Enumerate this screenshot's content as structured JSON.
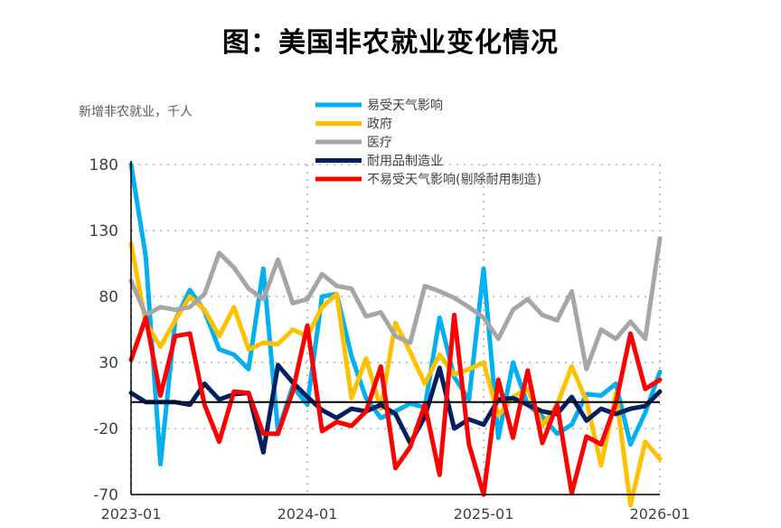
{
  "chart_data": {
    "type": "line",
    "title": "图：美国非农就业变化情况",
    "ylabel": "新增非农就业，千人",
    "xlabel": "",
    "ylim": [
      -70,
      180
    ],
    "yticks": [
      180,
      130,
      80,
      30,
      -20,
      -70
    ],
    "xticks": [
      "2023-01",
      "2024-01",
      "2025-01",
      "2026-01"
    ],
    "x": [
      "2023-01",
      "2023-02",
      "2023-03",
      "2023-04",
      "2023-05",
      "2023-06",
      "2023-07",
      "2023-08",
      "2023-09",
      "2023-10",
      "2023-11",
      "2023-12",
      "2024-01",
      "2024-02",
      "2024-03",
      "2024-04",
      "2024-05",
      "2024-06",
      "2024-07",
      "2024-08",
      "2024-09",
      "2024-10",
      "2024-11",
      "2024-12",
      "2025-01",
      "2025-02",
      "2025-03",
      "2025-04",
      "2025-05",
      "2025-06",
      "2025-07",
      "2025-08",
      "2025-09",
      "2025-10",
      "2025-11",
      "2025-12",
      "2026-01"
    ],
    "series": [
      {
        "name": "易受天气影响",
        "color": "#00B0F0",
        "values": [
          180,
          110,
          -47,
          62,
          85,
          69,
          40,
          36,
          25,
          101,
          -22,
          12,
          -2,
          80,
          82,
          35,
          3,
          -12,
          -7,
          -1,
          -4,
          64,
          19,
          2,
          101,
          -27,
          30,
          -2,
          -11,
          -24,
          -17,
          6,
          5,
          14,
          -32,
          -8,
          23
        ]
      },
      {
        "name": "政府",
        "color": "#FFC000",
        "values": [
          120,
          60,
          42,
          62,
          80,
          70,
          50,
          72,
          40,
          45,
          44,
          55,
          50,
          72,
          82,
          3,
          33,
          -5,
          60,
          38,
          14,
          36,
          21,
          25,
          30,
          -10,
          4,
          10,
          -18,
          -2,
          27,
          1,
          -48,
          7,
          -78,
          -30,
          -43
        ]
      },
      {
        "name": "医疗",
        "color": "#A6A6A6",
        "values": [
          92,
          66,
          72,
          70,
          72,
          82,
          113,
          102,
          86,
          78,
          108,
          75,
          78,
          97,
          88,
          86,
          65,
          68,
          50,
          45,
          88,
          84,
          79,
          72,
          64,
          48,
          70,
          78,
          66,
          62,
          84,
          25,
          55,
          48,
          61,
          48,
          124
        ]
      },
      {
        "name": "耐用品制造业",
        "color": "#002060",
        "values": [
          7,
          0,
          0,
          0,
          -2,
          14,
          2,
          6,
          7,
          -38,
          28,
          15,
          4,
          -6,
          -12,
          -5,
          -7,
          -2,
          -9,
          -31,
          -11,
          26,
          -20,
          -13,
          -17,
          2,
          3,
          -2,
          -7,
          -9,
          4,
          -14,
          -5,
          -9,
          -5,
          -3,
          8
        ]
      },
      {
        "name": "不易受天气影响(剔除耐用制造)",
        "color": "#FF0000",
        "values": [
          32,
          64,
          5,
          50,
          52,
          -2,
          -30,
          8,
          7,
          -24,
          -24,
          8,
          58,
          -22,
          -15,
          -18,
          -7,
          27,
          -50,
          -34,
          -2,
          -55,
          66,
          -32,
          -70,
          17,
          -27,
          24,
          -31,
          -2,
          -69,
          -26,
          -32,
          -1,
          52,
          10,
          17
        ]
      }
    ]
  }
}
